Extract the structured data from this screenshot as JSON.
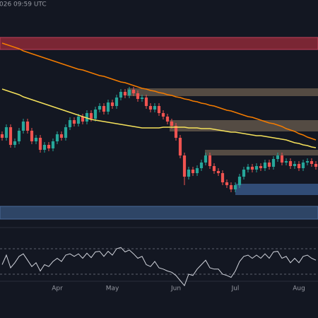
{
  "chart_data": {
    "type": "candlestick",
    "timestamp": "026 09:59 UTC",
    "categories": [
      null,
      null,
      null,
      null,
      null,
      null,
      null,
      null,
      null,
      null,
      null,
      null,
      null,
      "Apr",
      null,
      null,
      null,
      null,
      null,
      null,
      null,
      null,
      null,
      null,
      null,
      null,
      "May",
      null,
      null,
      null,
      null,
      null,
      null,
      null,
      null,
      null,
      null,
      null,
      null,
      null,
      null,
      "Jun",
      null,
      null,
      null,
      null,
      null,
      null,
      null,
      null,
      null,
      null,
      null,
      null,
      null,
      "Jul",
      null,
      null,
      null,
      null,
      null,
      null,
      null,
      null,
      null,
      null,
      null,
      null,
      null,
      null,
      "Aug",
      null,
      null,
      null,
      null
    ],
    "open": [
      130,
      125,
      140,
      115,
      120,
      135,
      148,
      135,
      120,
      125,
      108,
      115,
      110,
      120,
      130,
      125,
      140,
      150,
      145,
      155,
      148,
      160,
      152,
      165,
      170,
      162,
      175,
      170,
      182,
      190,
      185,
      193,
      188,
      180,
      182,
      170,
      165,
      170,
      160,
      155,
      148,
      142,
      125,
      100,
      70,
      80,
      75,
      82,
      90,
      100,
      85,
      78,
      75,
      62,
      58,
      52,
      58,
      70,
      80,
      84,
      80,
      85,
      82,
      90,
      84,
      95,
      100,
      90,
      92,
      85,
      88,
      82,
      90,
      92,
      88
    ],
    "high": [
      134,
      144,
      144,
      124,
      139,
      152,
      152,
      139,
      129,
      129,
      119,
      119,
      124,
      134,
      134,
      144,
      154,
      154,
      159,
      159,
      164,
      164,
      169,
      174,
      174,
      179,
      179,
      186,
      194,
      194,
      197,
      197,
      192,
      186,
      186,
      174,
      174,
      174,
      164,
      159,
      152,
      146,
      129,
      104,
      84,
      84,
      86,
      94,
      104,
      104,
      89,
      82,
      79,
      66,
      62,
      62,
      74,
      84,
      88,
      88,
      89,
      89,
      94,
      94,
      99,
      104,
      104,
      96,
      96,
      92,
      92,
      94,
      96,
      96,
      92
    ],
    "low": [
      121,
      121,
      111,
      111,
      116,
      131,
      131,
      116,
      116,
      104,
      104,
      106,
      106,
      116,
      121,
      121,
      136,
      141,
      141,
      144,
      144,
      148,
      148,
      161,
      158,
      158,
      166,
      166,
      178,
      181,
      181,
      184,
      176,
      176,
      166,
      161,
      161,
      156,
      151,
      144,
      138,
      121,
      96,
      58,
      66,
      71,
      71,
      78,
      86,
      81,
      74,
      71,
      58,
      54,
      48,
      48,
      54,
      66,
      76,
      76,
      76,
      78,
      78,
      80,
      80,
      91,
      86,
      86,
      81,
      81,
      78,
      78,
      86,
      84,
      80
    ],
    "close": [
      125,
      140,
      115,
      120,
      135,
      148,
      135,
      120,
      125,
      108,
      115,
      110,
      120,
      130,
      125,
      140,
      150,
      145,
      155,
      148,
      160,
      152,
      165,
      170,
      162,
      175,
      170,
      182,
      190,
      185,
      193,
      188,
      180,
      182,
      170,
      165,
      170,
      160,
      155,
      148,
      142,
      125,
      100,
      70,
      80,
      75,
      82,
      90,
      100,
      85,
      78,
      75,
      62,
      58,
      52,
      58,
      70,
      80,
      84,
      80,
      85,
      82,
      90,
      84,
      95,
      100,
      90,
      92,
      85,
      88,
      82,
      90,
      92,
      88,
      84
    ],
    "up_color": "#26a69a",
    "down_color": "#ef5350",
    "ylim": [
      0,
      320
    ],
    "series": [
      {
        "color": "#f57c00",
        "values": [
          259,
          257,
          255,
          253,
          251,
          248,
          246,
          244,
          242,
          240,
          238,
          236,
          234,
          232,
          230,
          228,
          226,
          224,
          222,
          221,
          219,
          217,
          215,
          213,
          212,
          210,
          208,
          206,
          204,
          203,
          201,
          199,
          197,
          195,
          194,
          192,
          191,
          189,
          188,
          186,
          185,
          183,
          182,
          180,
          179,
          177,
          176,
          174,
          173,
          171,
          170,
          168,
          166,
          164,
          163,
          161,
          159,
          157,
          155,
          154,
          152,
          150,
          148,
          146,
          145,
          143,
          141,
          138,
          136,
          134,
          131,
          129,
          126,
          124,
          122
        ]
      },
      {
        "color": "#f5e15b",
        "values": [
          194,
          192,
          190,
          188,
          186,
          183,
          181,
          179,
          177,
          175,
          173,
          171,
          169,
          167,
          165,
          163,
          161,
          159,
          157,
          155,
          153,
          151,
          150,
          149,
          148,
          147,
          146,
          145,
          144,
          143,
          142,
          141,
          140,
          139,
          139,
          139,
          139,
          139,
          140,
          140,
          140,
          140,
          140,
          140,
          139,
          139,
          139,
          138,
          138,
          138,
          137,
          136,
          135,
          134,
          133,
          133,
          132,
          131,
          130,
          129,
          128,
          128,
          127,
          126,
          125,
          124,
          123,
          122,
          120,
          118,
          117,
          115,
          114,
          112,
          111
        ]
      }
    ],
    "rsi": {
      "color": "#d1d4dc",
      "ylim": [
        0,
        100
      ],
      "levels": [
        70,
        30
      ],
      "values": [
        45,
        60,
        40,
        48,
        58,
        62,
        52,
        42,
        48,
        35,
        45,
        42,
        50,
        55,
        50,
        60,
        62,
        58,
        62,
        55,
        63,
        56,
        65,
        66,
        58,
        66,
        60,
        70,
        72,
        65,
        68,
        62,
        55,
        58,
        45,
        42,
        50,
        40,
        38,
        35,
        33,
        28,
        20,
        12,
        30,
        28,
        38,
        45,
        52,
        40,
        38,
        38,
        30,
        28,
        25,
        35,
        50,
        58,
        60,
        55,
        60,
        55,
        62,
        55,
        65,
        66,
        55,
        58,
        48,
        55,
        48,
        58,
        60,
        55,
        52
      ]
    }
  }
}
